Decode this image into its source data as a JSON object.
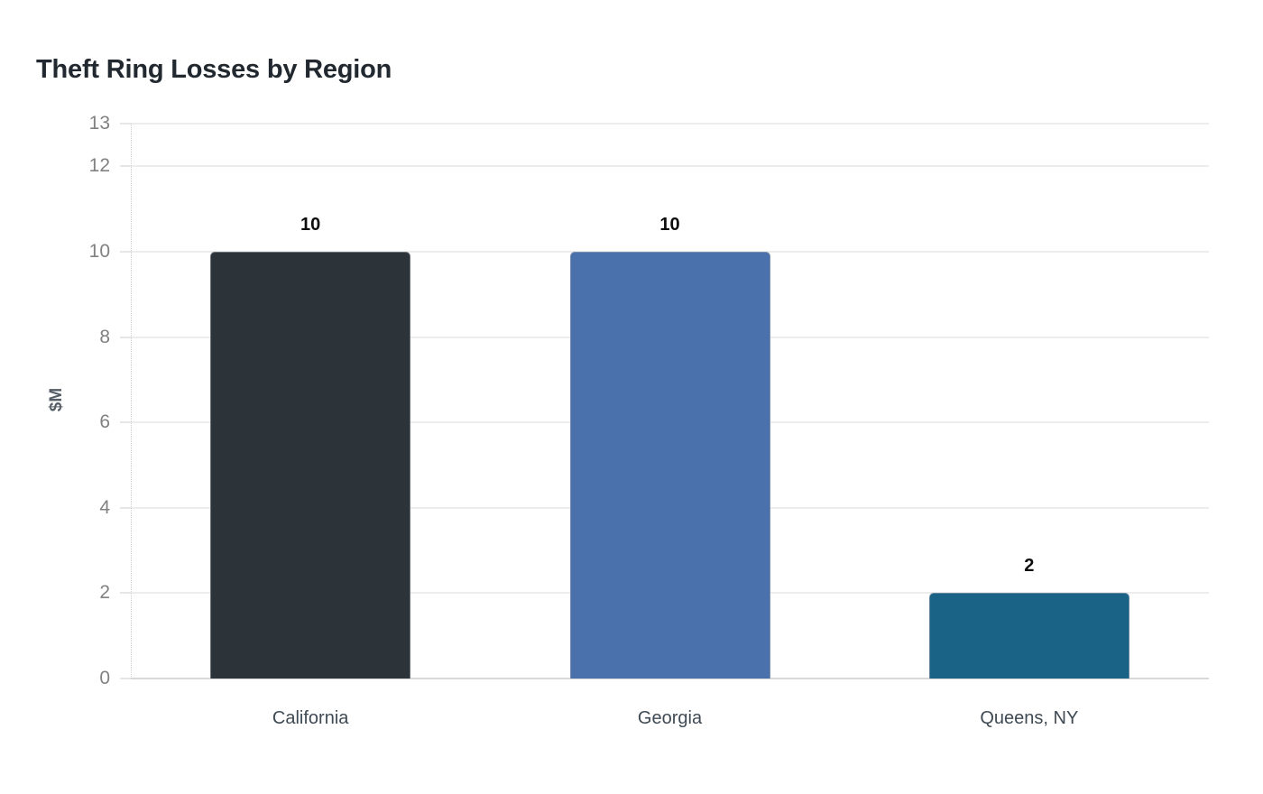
{
  "page": {
    "background_color": "#ffffff"
  },
  "chart_data": {
    "type": "bar",
    "title": "Theft Ring Losses by Region",
    "xlabel": "",
    "ylabel": "$M",
    "categories": [
      "California",
      "Georgia",
      "Queens, NY"
    ],
    "values": [
      10,
      10,
      2
    ],
    "value_labels": [
      "10",
      "10",
      "2"
    ],
    "bar_colors": [
      "#2c343a",
      "#4a71ac",
      "#1a6387"
    ],
    "yticks": [
      0,
      2,
      4,
      6,
      8,
      10,
      12,
      13
    ],
    "ylim": [
      0,
      13
    ],
    "grid": "horizontal",
    "legend_position": "none",
    "colors": {
      "title": "#21282f",
      "tick_label": "#818181",
      "x_label": "#3f4a54",
      "value_label": "#0d0d0d",
      "y_axis_title": "#555d66",
      "gridline": "#ededed",
      "zero_line": "#d8d8d8"
    }
  }
}
